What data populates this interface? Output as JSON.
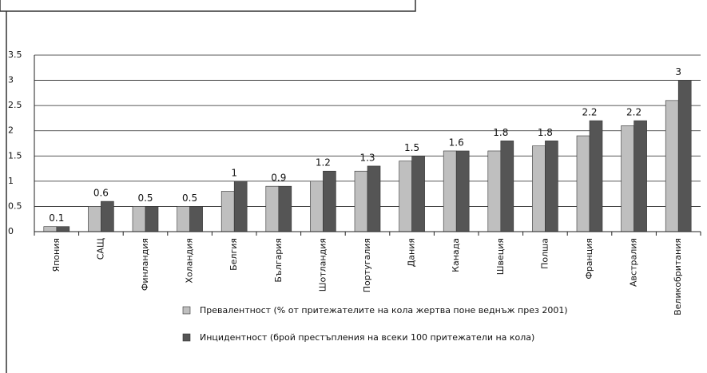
{
  "chart_data": {
    "type": "bar",
    "categories": [
      "Япония",
      "САЩ",
      "Финландия",
      "Холандия",
      "Белгия",
      "България",
      "Шотландия",
      "Португалия",
      "Дания",
      "Канада",
      "Швеция",
      "Полша",
      "Франция",
      "Австралия",
      "Великобритания"
    ],
    "series": [
      {
        "name": "Превалентност (% от притежателите на кола жертва поне веднъж през 2001)",
        "color": "#bfbfbf",
        "values": [
          0.1,
          0.5,
          0.5,
          0.5,
          0.8,
          0.9,
          1.0,
          1.2,
          1.4,
          1.6,
          1.6,
          1.7,
          1.9,
          2.1,
          2.6
        ]
      },
      {
        "name": "Инцидентност (брой престъпления на всеки 100 притежатели на кола)",
        "color": "#555555",
        "values": [
          0.1,
          0.6,
          0.5,
          0.5,
          1,
          0.9,
          1.2,
          1.3,
          1.5,
          1.6,
          1.8,
          1.8,
          2.2,
          2.2,
          3
        ]
      }
    ],
    "ylim": [
      0,
      3.5
    ],
    "yticks": [
      0,
      0.5,
      1,
      1.5,
      2,
      2.5,
      3,
      3.5
    ],
    "grid": true
  }
}
